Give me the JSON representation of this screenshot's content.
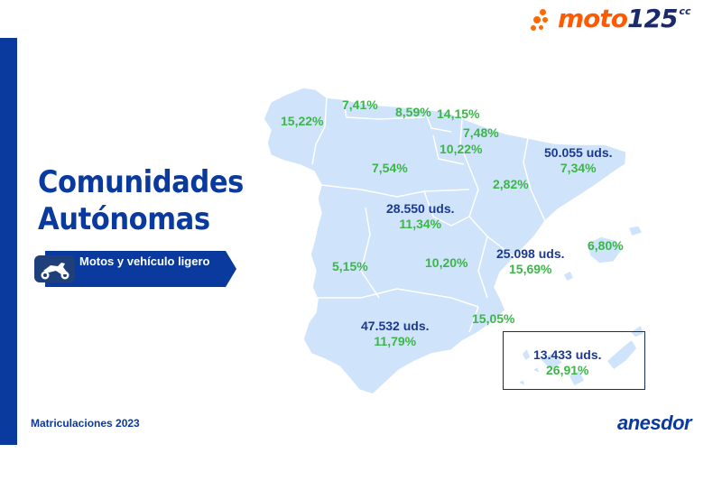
{
  "logo": {
    "word": "moto",
    "number": "125",
    "superscript": "cc"
  },
  "title": {
    "line1": "Comunidades",
    "line2": "Autónomas"
  },
  "category": {
    "label": "Motos y vehículo ligero",
    "icon": "motorcycle-icon"
  },
  "footer": {
    "caption": "Matriculaciones 2023",
    "brand": "anesdor"
  },
  "colors": {
    "primary": "#0a3a9e",
    "percent": "#3db54a",
    "map_fill": "#cfe3fa",
    "accent": "#ff5a00"
  },
  "regions": [
    {
      "name": "galicia",
      "pct": "15,22%"
    },
    {
      "name": "asturias",
      "pct": "7,41%"
    },
    {
      "name": "cantabria",
      "pct": "8,59%"
    },
    {
      "name": "pais-vasco",
      "pct": "14,15%"
    },
    {
      "name": "navarra",
      "pct": "7,48%"
    },
    {
      "name": "la-rioja",
      "pct": "10,22%"
    },
    {
      "name": "castilla-y-leon",
      "pct": "7,54%"
    },
    {
      "name": "cataluna",
      "units": "50.055 uds.",
      "pct": "7,34%"
    },
    {
      "name": "aragon",
      "pct": "2,82%"
    },
    {
      "name": "madrid",
      "units": "28.550 uds.",
      "pct": "11,34%"
    },
    {
      "name": "baleares",
      "pct": "6,80%"
    },
    {
      "name": "valencia",
      "units": "25.098 uds.",
      "pct": "15,69%"
    },
    {
      "name": "extremadura",
      "pct": "5,15%"
    },
    {
      "name": "castilla-la-mancha",
      "pct": "10,20%"
    },
    {
      "name": "murcia",
      "pct": "15,05%"
    },
    {
      "name": "andalucia",
      "units": "47.532 uds.",
      "pct": "11,79%"
    },
    {
      "name": "canarias",
      "units": "13.433 uds.",
      "pct": "26,91%"
    }
  ]
}
